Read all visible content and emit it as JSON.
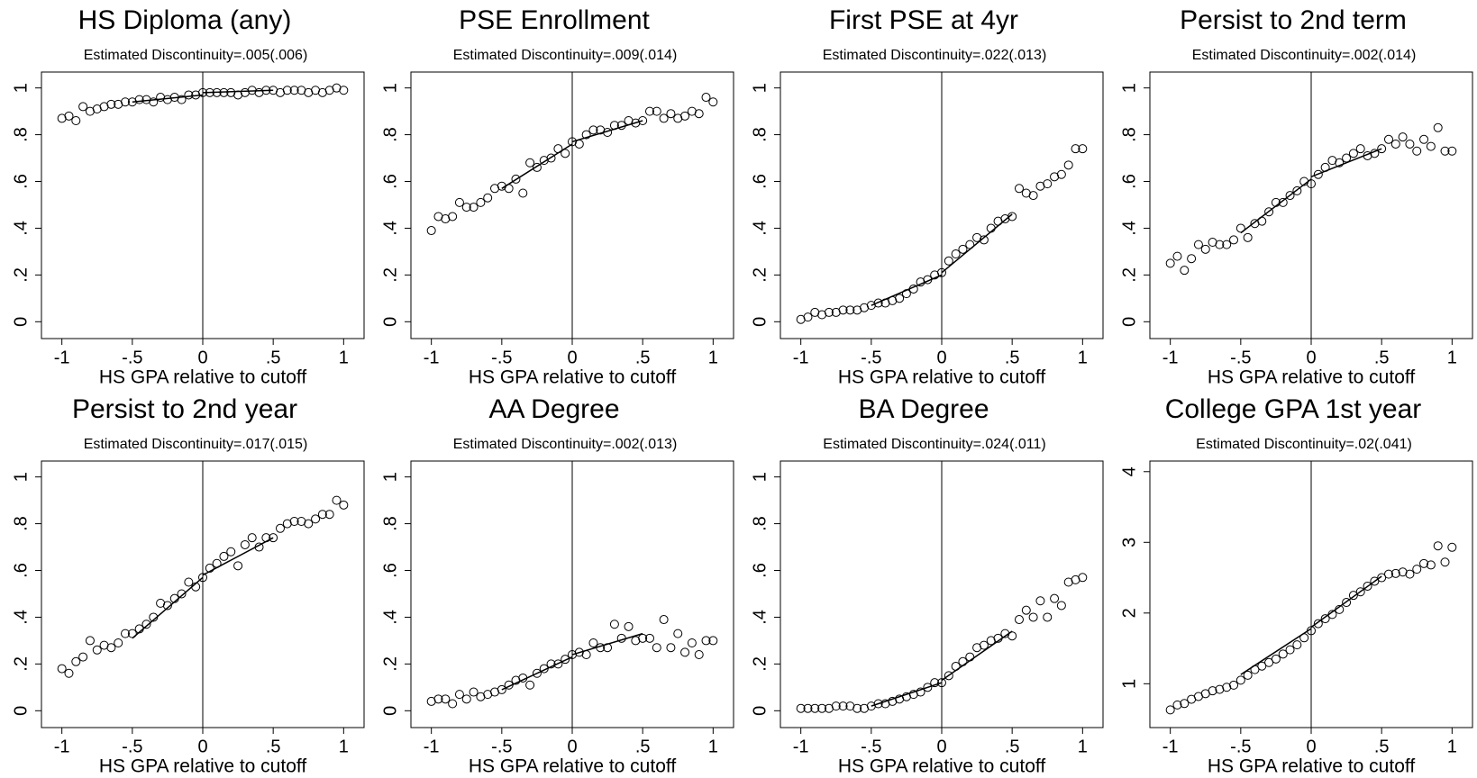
{
  "chart_data": [
    {
      "type": "scatter",
      "title": "HS Diploma (any)",
      "subtitle": "Estimated Discontinuity=.005(.006)",
      "xlabel": "HS GPA relative to cutoff",
      "x": [
        -1,
        -0.95,
        -0.9,
        -0.85,
        -0.8,
        -0.75,
        -0.7,
        -0.65,
        -0.6,
        -0.55,
        -0.5,
        -0.45,
        -0.4,
        -0.35,
        -0.3,
        -0.25,
        -0.2,
        -0.15,
        -0.1,
        -0.05,
        0,
        0.05,
        0.1,
        0.15,
        0.2,
        0.25,
        0.3,
        0.35,
        0.4,
        0.45,
        0.5,
        0.55,
        0.6,
        0.65,
        0.7,
        0.75,
        0.8,
        0.85,
        0.9,
        0.95,
        1
      ],
      "values": [
        0.87,
        0.88,
        0.86,
        0.92,
        0.9,
        0.91,
        0.92,
        0.93,
        0.93,
        0.94,
        0.94,
        0.95,
        0.95,
        0.94,
        0.96,
        0.95,
        0.96,
        0.95,
        0.97,
        0.97,
        0.98,
        0.98,
        0.98,
        0.98,
        0.98,
        0.97,
        0.98,
        0.99,
        0.98,
        0.99,
        0.99,
        0.98,
        0.99,
        0.99,
        0.99,
        0.98,
        0.99,
        0.98,
        0.99,
        1.0,
        0.99
      ],
      "fit_lines": [
        {
          "x": [
            -0.5,
            0
          ],
          "values": [
            0.94,
            0.97
          ]
        },
        {
          "x": [
            0,
            0.5
          ],
          "values": [
            0.98,
            0.99
          ]
        }
      ],
      "xlim": [
        -1.145,
        1.145
      ],
      "ylim": [
        -0.072,
        1.068
      ],
      "xticks": [
        -1,
        {
          "value": -0.5,
          "label": "-.5"
        },
        0,
        {
          "value": 0.5,
          "label": ".5"
        },
        1
      ],
      "yticks": [
        0,
        {
          "value": 0.2,
          "label": ".2"
        },
        {
          "value": 0.4,
          "label": ".4"
        },
        {
          "value": 0.6,
          "label": ".6"
        },
        {
          "value": 0.8,
          "label": ".8"
        },
        1
      ]
    },
    {
      "type": "scatter",
      "title": "PSE Enrollment",
      "subtitle": "Estimated Discontinuity=.009(.014)",
      "xlabel": "HS GPA relative to cutoff",
      "x": [
        -1,
        -0.95,
        -0.9,
        -0.85,
        -0.8,
        -0.75,
        -0.7,
        -0.65,
        -0.6,
        -0.55,
        -0.5,
        -0.45,
        -0.4,
        -0.35,
        -0.3,
        -0.25,
        -0.2,
        -0.15,
        -0.1,
        -0.05,
        0,
        0.05,
        0.1,
        0.15,
        0.2,
        0.25,
        0.3,
        0.35,
        0.4,
        0.45,
        0.5,
        0.55,
        0.6,
        0.65,
        0.7,
        0.75,
        0.8,
        0.85,
        0.9,
        0.95,
        1
      ],
      "values": [
        0.39,
        0.45,
        0.44,
        0.45,
        0.51,
        0.49,
        0.49,
        0.51,
        0.53,
        0.57,
        0.58,
        0.57,
        0.61,
        0.55,
        0.68,
        0.66,
        0.69,
        0.7,
        0.74,
        0.72,
        0.77,
        0.76,
        0.8,
        0.82,
        0.82,
        0.81,
        0.84,
        0.84,
        0.86,
        0.85,
        0.86,
        0.9,
        0.9,
        0.87,
        0.89,
        0.87,
        0.88,
        0.9,
        0.89,
        0.96,
        0.94
      ],
      "fit_lines": [
        {
          "x": [
            -0.5,
            0
          ],
          "values": [
            0.57,
            0.76
          ]
        },
        {
          "x": [
            0,
            0.5
          ],
          "values": [
            0.77,
            0.86
          ]
        }
      ],
      "xlim": [
        -1.145,
        1.145
      ],
      "ylim": [
        -0.072,
        1.068
      ],
      "xticks": [
        -1,
        {
          "value": -0.5,
          "label": "-.5"
        },
        0,
        {
          "value": 0.5,
          "label": ".5"
        },
        1
      ],
      "yticks": [
        0,
        {
          "value": 0.2,
          "label": ".2"
        },
        {
          "value": 0.4,
          "label": ".4"
        },
        {
          "value": 0.6,
          "label": ".6"
        },
        {
          "value": 0.8,
          "label": ".8"
        },
        1
      ]
    },
    {
      "type": "scatter",
      "title": "First PSE at 4yr",
      "subtitle": "Estimated Discontinuity=.022(.013)",
      "xlabel": "HS GPA relative to cutoff",
      "x": [
        -1,
        -0.95,
        -0.9,
        -0.85,
        -0.8,
        -0.75,
        -0.7,
        -0.65,
        -0.6,
        -0.55,
        -0.5,
        -0.45,
        -0.4,
        -0.35,
        -0.3,
        -0.25,
        -0.2,
        -0.15,
        -0.1,
        -0.05,
        0,
        0.05,
        0.1,
        0.15,
        0.2,
        0.25,
        0.3,
        0.35,
        0.4,
        0.45,
        0.5,
        0.55,
        0.6,
        0.65,
        0.7,
        0.75,
        0.8,
        0.85,
        0.9,
        0.95,
        1
      ],
      "values": [
        0.01,
        0.02,
        0.04,
        0.03,
        0.04,
        0.04,
        0.05,
        0.05,
        0.05,
        0.06,
        0.07,
        0.08,
        0.08,
        0.09,
        0.1,
        0.12,
        0.14,
        0.17,
        0.18,
        0.2,
        0.21,
        0.26,
        0.29,
        0.31,
        0.33,
        0.36,
        0.35,
        0.4,
        0.43,
        0.44,
        0.45,
        0.57,
        0.55,
        0.54,
        0.58,
        0.59,
        0.62,
        0.63,
        0.67,
        0.74,
        0.74
      ],
      "fit_lines": [
        {
          "x": [
            -0.5,
            0
          ],
          "values": [
            0.07,
            0.2
          ]
        },
        {
          "x": [
            0,
            0.5
          ],
          "values": [
            0.21,
            0.46
          ]
        }
      ],
      "xlim": [
        -1.145,
        1.145
      ],
      "ylim": [
        -0.072,
        1.068
      ],
      "xticks": [
        -1,
        {
          "value": -0.5,
          "label": "-.5"
        },
        0,
        {
          "value": 0.5,
          "label": ".5"
        },
        1
      ],
      "yticks": [
        0,
        {
          "value": 0.2,
          "label": ".2"
        },
        {
          "value": 0.4,
          "label": ".4"
        },
        {
          "value": 0.6,
          "label": ".6"
        },
        {
          "value": 0.8,
          "label": ".8"
        },
        1
      ]
    },
    {
      "type": "scatter",
      "title": "Persist to 2nd term",
      "subtitle": "Estimated Discontinuity=.002(.014)",
      "xlabel": "HS GPA relative to cutoff",
      "x": [
        -1,
        -0.95,
        -0.9,
        -0.85,
        -0.8,
        -0.75,
        -0.7,
        -0.65,
        -0.6,
        -0.55,
        -0.5,
        -0.45,
        -0.4,
        -0.35,
        -0.3,
        -0.25,
        -0.2,
        -0.15,
        -0.1,
        -0.05,
        0,
        0.05,
        0.1,
        0.15,
        0.2,
        0.25,
        0.3,
        0.35,
        0.4,
        0.45,
        0.5,
        0.55,
        0.6,
        0.65,
        0.7,
        0.75,
        0.8,
        0.85,
        0.9,
        0.95,
        1
      ],
      "values": [
        0.25,
        0.28,
        0.22,
        0.27,
        0.33,
        0.31,
        0.34,
        0.33,
        0.33,
        0.35,
        0.4,
        0.36,
        0.42,
        0.43,
        0.47,
        0.51,
        0.51,
        0.54,
        0.56,
        0.6,
        0.59,
        0.63,
        0.66,
        0.69,
        0.68,
        0.7,
        0.72,
        0.74,
        0.71,
        0.72,
        0.74,
        0.78,
        0.76,
        0.79,
        0.76,
        0.73,
        0.78,
        0.75,
        0.83,
        0.73,
        0.73
      ],
      "fit_lines": [
        {
          "x": [
            -0.5,
            0
          ],
          "values": [
            0.38,
            0.61
          ]
        },
        {
          "x": [
            0,
            0.5
          ],
          "values": [
            0.62,
            0.74
          ]
        }
      ],
      "xlim": [
        -1.145,
        1.145
      ],
      "ylim": [
        -0.072,
        1.068
      ],
      "xticks": [
        -1,
        {
          "value": -0.5,
          "label": "-.5"
        },
        0,
        {
          "value": 0.5,
          "label": ".5"
        },
        1
      ],
      "yticks": [
        0,
        {
          "value": 0.2,
          "label": ".2"
        },
        {
          "value": 0.4,
          "label": ".4"
        },
        {
          "value": 0.6,
          "label": ".6"
        },
        {
          "value": 0.8,
          "label": ".8"
        },
        1
      ]
    },
    {
      "type": "scatter",
      "title": "Persist to 2nd year",
      "subtitle": "Estimated Discontinuity=.017(.015)",
      "xlabel": "HS GPA relative to cutoff",
      "x": [
        -1,
        -0.95,
        -0.9,
        -0.85,
        -0.8,
        -0.75,
        -0.7,
        -0.65,
        -0.6,
        -0.55,
        -0.5,
        -0.45,
        -0.4,
        -0.35,
        -0.3,
        -0.25,
        -0.2,
        -0.15,
        -0.1,
        -0.05,
        0,
        0.05,
        0.1,
        0.15,
        0.2,
        0.25,
        0.3,
        0.35,
        0.4,
        0.45,
        0.5,
        0.55,
        0.6,
        0.65,
        0.7,
        0.75,
        0.8,
        0.85,
        0.9,
        0.95,
        1
      ],
      "values": [
        0.18,
        0.16,
        0.21,
        0.23,
        0.3,
        0.26,
        0.28,
        0.27,
        0.29,
        0.33,
        0.33,
        0.35,
        0.37,
        0.4,
        0.46,
        0.45,
        0.48,
        0.5,
        0.55,
        0.53,
        0.57,
        0.61,
        0.63,
        0.66,
        0.68,
        0.62,
        0.71,
        0.74,
        0.7,
        0.74,
        0.74,
        0.78,
        0.8,
        0.81,
        0.81,
        0.8,
        0.82,
        0.84,
        0.84,
        0.9,
        0.88
      ],
      "fit_lines": [
        {
          "x": [
            -0.5,
            0
          ],
          "values": [
            0.31,
            0.57
          ]
        },
        {
          "x": [
            0,
            0.5
          ],
          "values": [
            0.58,
            0.74
          ]
        }
      ],
      "xlim": [
        -1.145,
        1.145
      ],
      "ylim": [
        -0.072,
        1.068
      ],
      "xticks": [
        -1,
        {
          "value": -0.5,
          "label": "-.5"
        },
        0,
        {
          "value": 0.5,
          "label": ".5"
        },
        1
      ],
      "yticks": [
        0,
        {
          "value": 0.2,
          "label": ".2"
        },
        {
          "value": 0.4,
          "label": ".4"
        },
        {
          "value": 0.6,
          "label": ".6"
        },
        {
          "value": 0.8,
          "label": ".8"
        },
        1
      ]
    },
    {
      "type": "scatter",
      "title": "AA Degree",
      "subtitle": "Estimated Discontinuity=.002(.013)",
      "xlabel": "HS GPA relative to cutoff",
      "x": [
        -1,
        -0.95,
        -0.9,
        -0.85,
        -0.8,
        -0.75,
        -0.7,
        -0.65,
        -0.6,
        -0.55,
        -0.5,
        -0.45,
        -0.4,
        -0.35,
        -0.3,
        -0.25,
        -0.2,
        -0.15,
        -0.1,
        -0.05,
        0,
        0.05,
        0.1,
        0.15,
        0.2,
        0.25,
        0.3,
        0.35,
        0.4,
        0.45,
        0.5,
        0.55,
        0.6,
        0.65,
        0.7,
        0.75,
        0.8,
        0.85,
        0.9,
        0.95,
        1
      ],
      "values": [
        0.04,
        0.05,
        0.05,
        0.03,
        0.07,
        0.05,
        0.08,
        0.06,
        0.07,
        0.08,
        0.09,
        0.11,
        0.13,
        0.14,
        0.11,
        0.16,
        0.18,
        0.2,
        0.2,
        0.22,
        0.24,
        0.25,
        0.24,
        0.29,
        0.27,
        0.27,
        0.37,
        0.31,
        0.36,
        0.3,
        0.31,
        0.31,
        0.27,
        0.39,
        0.27,
        0.33,
        0.25,
        0.29,
        0.24,
        0.3,
        0.3
      ],
      "fit_lines": [
        {
          "x": [
            -0.5,
            0
          ],
          "values": [
            0.09,
            0.23
          ]
        },
        {
          "x": [
            0,
            0.5
          ],
          "values": [
            0.24,
            0.33
          ]
        }
      ],
      "xlim": [
        -1.145,
        1.145
      ],
      "ylim": [
        -0.072,
        1.068
      ],
      "xticks": [
        -1,
        {
          "value": -0.5,
          "label": "-.5"
        },
        0,
        {
          "value": 0.5,
          "label": ".5"
        },
        1
      ],
      "yticks": [
        0,
        {
          "value": 0.2,
          "label": ".2"
        },
        {
          "value": 0.4,
          "label": ".4"
        },
        {
          "value": 0.6,
          "label": ".6"
        },
        {
          "value": 0.8,
          "label": ".8"
        },
        1
      ]
    },
    {
      "type": "scatter",
      "title": "BA Degree",
      "subtitle": "Estimated Discontinuity=.024(.011)",
      "xlabel": "HS GPA relative to cutoff",
      "x": [
        -1,
        -0.95,
        -0.9,
        -0.85,
        -0.8,
        -0.75,
        -0.7,
        -0.65,
        -0.6,
        -0.55,
        -0.5,
        -0.45,
        -0.4,
        -0.35,
        -0.3,
        -0.25,
        -0.2,
        -0.15,
        -0.1,
        -0.05,
        0,
        0.05,
        0.1,
        0.15,
        0.2,
        0.25,
        0.3,
        0.35,
        0.4,
        0.45,
        0.5,
        0.55,
        0.6,
        0.65,
        0.7,
        0.75,
        0.8,
        0.85,
        0.9,
        0.95,
        1
      ],
      "values": [
        0.01,
        0.01,
        0.01,
        0.01,
        0.01,
        0.02,
        0.02,
        0.02,
        0.01,
        0.01,
        0.02,
        0.03,
        0.03,
        0.04,
        0.05,
        0.06,
        0.07,
        0.08,
        0.1,
        0.12,
        0.12,
        0.15,
        0.19,
        0.21,
        0.23,
        0.27,
        0.28,
        0.3,
        0.31,
        0.33,
        0.32,
        0.39,
        0.43,
        0.4,
        0.47,
        0.4,
        0.48,
        0.45,
        0.55,
        0.56,
        0.57
      ],
      "fit_lines": [
        {
          "x": [
            -0.5,
            0
          ],
          "values": [
            0.02,
            0.12
          ]
        },
        {
          "x": [
            0,
            0.5
          ],
          "values": [
            0.13,
            0.34
          ]
        }
      ],
      "xlim": [
        -1.145,
        1.145
      ],
      "ylim": [
        -0.072,
        1.068
      ],
      "xticks": [
        -1,
        {
          "value": -0.5,
          "label": "-.5"
        },
        0,
        {
          "value": 0.5,
          "label": ".5"
        },
        1
      ],
      "yticks": [
        0,
        {
          "value": 0.2,
          "label": ".2"
        },
        {
          "value": 0.4,
          "label": ".4"
        },
        {
          "value": 0.6,
          "label": ".6"
        },
        {
          "value": 0.8,
          "label": ".8"
        },
        1
      ]
    },
    {
      "type": "scatter",
      "title": "College GPA 1st year",
      "subtitle": "Estimated Discontinuity=.02(.041)",
      "xlabel": "HS GPA relative to cutoff",
      "x": [
        -1,
        -0.95,
        -0.9,
        -0.85,
        -0.8,
        -0.75,
        -0.7,
        -0.65,
        -0.6,
        -0.55,
        -0.5,
        -0.45,
        -0.4,
        -0.35,
        -0.3,
        -0.25,
        -0.2,
        -0.15,
        -0.1,
        -0.05,
        0,
        0.05,
        0.1,
        0.15,
        0.2,
        0.25,
        0.3,
        0.35,
        0.4,
        0.45,
        0.5,
        0.55,
        0.6,
        0.65,
        0.7,
        0.75,
        0.8,
        0.85,
        0.9,
        0.95,
        1
      ],
      "values": [
        0.63,
        0.7,
        0.72,
        0.78,
        0.82,
        0.86,
        0.9,
        0.92,
        0.95,
        0.98,
        1.05,
        1.12,
        1.2,
        1.25,
        1.3,
        1.35,
        1.42,
        1.48,
        1.55,
        1.65,
        1.75,
        1.85,
        1.92,
        1.98,
        2.05,
        2.15,
        2.25,
        2.3,
        2.38,
        2.45,
        2.5,
        2.55,
        2.56,
        2.58,
        2.55,
        2.62,
        2.7,
        2.68,
        2.95,
        2.72,
        2.93
      ],
      "fit_lines": [
        {
          "x": [
            -0.5,
            0
          ],
          "values": [
            1.13,
            1.78
          ]
        },
        {
          "x": [
            0,
            0.5
          ],
          "values": [
            1.8,
            2.52
          ]
        }
      ],
      "xlim": [
        -1.145,
        1.145
      ],
      "ylim": [
        0.38,
        4.15
      ],
      "xticks": [
        -1,
        {
          "value": -0.5,
          "label": "-.5"
        },
        0,
        {
          "value": 0.5,
          "label": ".5"
        },
        1
      ],
      "yticks": [
        1,
        2,
        3,
        4
      ]
    }
  ]
}
